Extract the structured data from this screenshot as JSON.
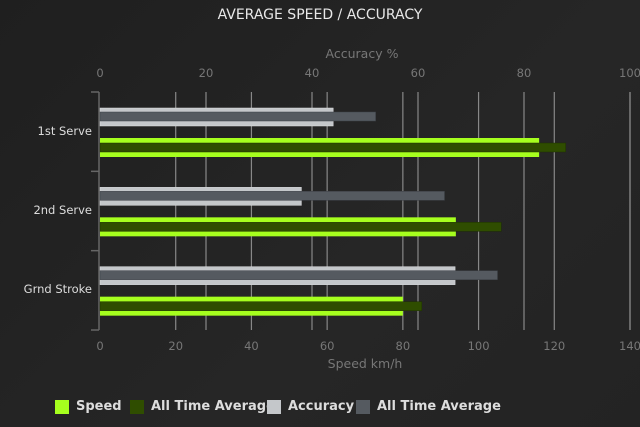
{
  "chart_data": {
    "type": "bar",
    "orientation": "horizontal",
    "title": "AVERAGE SPEED / ACCURACY",
    "categories": [
      "1st Serve",
      "2nd Serve",
      "Grnd Stroke"
    ],
    "x_axis_bottom": {
      "label": "Speed km/h",
      "range": [
        0,
        140
      ],
      "ticks": [
        "0",
        "20",
        "40",
        "60",
        "80",
        "100",
        "120",
        "140"
      ]
    },
    "x_axis_top": {
      "label": "Accuracy %",
      "range": [
        0,
        100
      ],
      "ticks": [
        "0",
        "20",
        "40",
        "60",
        "80",
        "100"
      ]
    },
    "grid": true,
    "legend_position": "bottom",
    "series": [
      {
        "name": "Speed",
        "axis": "bottom",
        "color": "#a6ff1e",
        "values": [
          116,
          94,
          80
        ]
      },
      {
        "name": "All Time Average",
        "axis": "bottom",
        "color": "#2f4d00",
        "values": [
          123,
          106,
          85
        ]
      },
      {
        "name": "Accuracy",
        "axis": "top",
        "color": "#c4c7ca",
        "values": [
          44,
          38,
          67
        ]
      },
      {
        "name": "All Time Average",
        "axis": "top",
        "color": "#555a60",
        "values": [
          52,
          65,
          75
        ]
      }
    ]
  }
}
